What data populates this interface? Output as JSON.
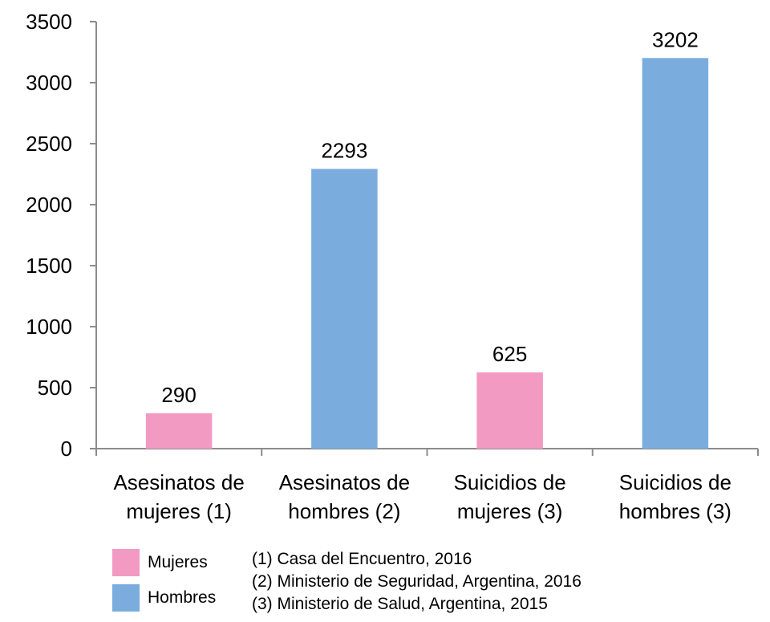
{
  "chart_data": {
    "type": "bar",
    "title": "",
    "xlabel": "",
    "ylabel": "",
    "ylim": [
      0,
      3500
    ],
    "yticks": [
      0,
      500,
      1000,
      1500,
      2000,
      2500,
      3000,
      3500
    ],
    "grid": false,
    "legend_placement": "bottom-left",
    "categories": [
      [
        "Asesinatos de",
        "mujeres (1)"
      ],
      [
        "Asesinatos de",
        "hombres (2)"
      ],
      [
        "Suicidios de",
        "mujeres (3)"
      ],
      [
        "Suicidios de",
        "hombres (3)"
      ]
    ],
    "values": [
      290,
      2293,
      625,
      3202
    ],
    "bar_series": [
      "Mujeres",
      "Hombres",
      "Mujeres",
      "Hombres"
    ],
    "series": [
      {
        "name": "Mujeres",
        "color": "#F39AC2"
      },
      {
        "name": "Hombres",
        "color": "#7AADDD"
      }
    ]
  },
  "legend": {
    "items": [
      {
        "label": "Mujeres",
        "color": "#F39AC2"
      },
      {
        "label": "Hombres",
        "color": "#7AADDD"
      }
    ]
  },
  "sources": [
    "(1) Casa del Encuentro, 2016",
    "(2) Ministerio de Seguridad, Argentina, 2016",
    "(3) Ministerio de Salud, Argentina, 2015"
  ]
}
